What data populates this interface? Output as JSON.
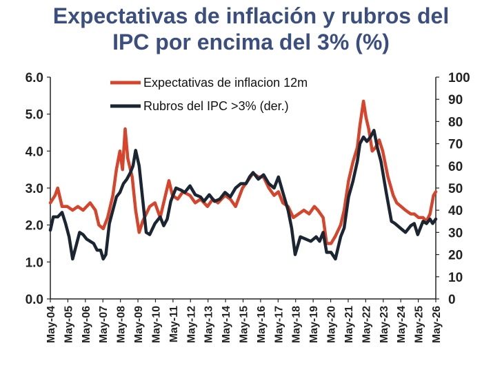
{
  "title_line1": "Expectativas de inflación y rubros del",
  "title_line2": "IPC por encima del 3% (%)",
  "colors": {
    "title": "#3a4f7f",
    "expectations": "#d6442b",
    "ipc": "#1c2633"
  },
  "chart_data": {
    "type": "line",
    "title": "Expectativas de inflación y rubros del IPC por encima del 3% (%)",
    "legend": [
      "Expectativas de inflacion 12m",
      "Rubros del IPC >3% (der.)"
    ],
    "legend_position": "top-center",
    "grid": false,
    "y_left": {
      "range": [
        0,
        6
      ],
      "ticks": [
        "0.0",
        "1.0",
        "2.0",
        "3.0",
        "4.0",
        "5.0",
        "6.0"
      ]
    },
    "y_right": {
      "range": [
        0,
        100
      ],
      "ticks": [
        "0",
        "10",
        "20",
        "30",
        "40",
        "50",
        "60",
        "70",
        "80",
        "90",
        "100"
      ]
    },
    "x_ticks": [
      "May-04",
      "May-05",
      "May-06",
      "May-07",
      "May-08",
      "May-09",
      "May-10",
      "May-11",
      "May-12",
      "May-13",
      "May-14",
      "May-15",
      "May-16",
      "May-17",
      "May-18",
      "May-19",
      "May-20",
      "May-21",
      "May-22",
      "May-23",
      "May-24",
      "May-25",
      "May-26"
    ],
    "x_range": [
      2004.33,
      2026.33
    ],
    "series": [
      {
        "name": "Expectativas de inflacion 12m",
        "axis": "left",
        "x": [
          2004.33,
          2004.6,
          2004.75,
          2005.0,
          2005.3,
          2005.6,
          2005.9,
          2006.2,
          2006.6,
          2006.9,
          2007.1,
          2007.35,
          2007.6,
          2007.9,
          2008.1,
          2008.3,
          2008.45,
          2008.6,
          2008.75,
          2009.0,
          2009.2,
          2009.4,
          2009.6,
          2009.8,
          2010.0,
          2010.3,
          2010.6,
          2010.9,
          2011.1,
          2011.3,
          2011.6,
          2011.9,
          2012.3,
          2012.6,
          2012.9,
          2013.3,
          2013.6,
          2013.9,
          2014.3,
          2014.6,
          2014.9,
          2015.3,
          2015.6,
          2015.9,
          2016.2,
          2016.5,
          2016.8,
          2017.1,
          2017.35,
          2017.6,
          2017.9,
          2018.2,
          2018.5,
          2018.8,
          2019.1,
          2019.4,
          2019.6,
          2019.9,
          2020.1,
          2020.35,
          2020.6,
          2020.9,
          2021.1,
          2021.35,
          2021.6,
          2021.85,
          2022.0,
          2022.2,
          2022.35,
          2022.5,
          2022.7,
          2022.9,
          2023.1,
          2023.3,
          2023.6,
          2023.9,
          2024.1,
          2024.35,
          2024.6,
          2024.9,
          2025.1,
          2025.35,
          2025.6,
          2025.8,
          2026.0,
          2026.2,
          2026.33
        ],
        "values": [
          2.6,
          2.8,
          3.0,
          2.5,
          2.5,
          2.4,
          2.5,
          2.4,
          2.6,
          2.4,
          2.0,
          1.9,
          2.2,
          2.8,
          3.5,
          4.0,
          3.5,
          4.6,
          3.8,
          3.3,
          2.4,
          1.8,
          2.1,
          2.3,
          2.5,
          2.6,
          2.2,
          2.8,
          3.2,
          2.8,
          2.7,
          2.9,
          2.8,
          2.6,
          2.7,
          2.5,
          2.7,
          2.6,
          2.8,
          2.7,
          2.5,
          3.0,
          3.2,
          3.4,
          3.3,
          3.3,
          3.0,
          2.8,
          2.9,
          2.6,
          2.5,
          2.2,
          2.3,
          2.4,
          2.3,
          2.5,
          2.4,
          2.2,
          1.5,
          1.5,
          1.7,
          2.0,
          2.4,
          3.2,
          3.7,
          4.1,
          4.7,
          5.35,
          4.9,
          4.6,
          4.0,
          4.1,
          4.3,
          4.0,
          3.3,
          2.8,
          2.6,
          2.5,
          2.4,
          2.3,
          2.3,
          2.2,
          2.2,
          2.1,
          2.3,
          2.8,
          2.9
        ]
      },
      {
        "name": "Rubros del IPC >3% (der.)",
        "axis": "right",
        "x": [
          2004.33,
          2004.5,
          2004.75,
          2005.0,
          2005.2,
          2005.4,
          2005.6,
          2005.8,
          2006.0,
          2006.2,
          2006.4,
          2006.6,
          2006.8,
          2007.0,
          2007.2,
          2007.35,
          2007.5,
          2007.7,
          2007.9,
          2008.1,
          2008.3,
          2008.5,
          2008.7,
          2008.9,
          2009.05,
          2009.2,
          2009.4,
          2009.6,
          2009.8,
          2010.0,
          2010.3,
          2010.6,
          2010.8,
          2011.0,
          2011.2,
          2011.5,
          2011.8,
          2012.0,
          2012.3,
          2012.6,
          2012.9,
          2013.1,
          2013.4,
          2013.7,
          2014.0,
          2014.3,
          2014.6,
          2014.9,
          2015.2,
          2015.5,
          2015.7,
          2015.9,
          2016.2,
          2016.5,
          2016.8,
          2017.1,
          2017.35,
          2017.6,
          2017.9,
          2018.1,
          2018.3,
          2018.6,
          2018.9,
          2019.2,
          2019.5,
          2019.7,
          2019.9,
          2020.1,
          2020.35,
          2020.6,
          2020.9,
          2021.1,
          2021.35,
          2021.6,
          2021.85,
          2022.0,
          2022.2,
          2022.4,
          2022.6,
          2022.8,
          2023.0,
          2023.2,
          2023.5,
          2023.8,
          2024.0,
          2024.3,
          2024.6,
          2024.9,
          2025.1,
          2025.3,
          2025.6,
          2025.8,
          2026.0,
          2026.15,
          2026.33
        ],
        "values": [
          31,
          37,
          37,
          39,
          34,
          28,
          18,
          24,
          30,
          29,
          27,
          26,
          25,
          22,
          22,
          18,
          20,
          34,
          40,
          46,
          48,
          52,
          54,
          57,
          60,
          67,
          60,
          45,
          30,
          29,
          34,
          37,
          33,
          36,
          44,
          50,
          49,
          48,
          51,
          47,
          46,
          44,
          47,
          44,
          45,
          48,
          46,
          50,
          52,
          52,
          55,
          57,
          54,
          56,
          52,
          50,
          55,
          48,
          40,
          32,
          20,
          28,
          27,
          26,
          28,
          26,
          30,
          21,
          21,
          18,
          28,
          32,
          46,
          53,
          62,
          70,
          73,
          71,
          73,
          76,
          68,
          62,
          48,
          35,
          34,
          32,
          30,
          33,
          34,
          29,
          35,
          34,
          36,
          34,
          36
        ]
      }
    ]
  }
}
